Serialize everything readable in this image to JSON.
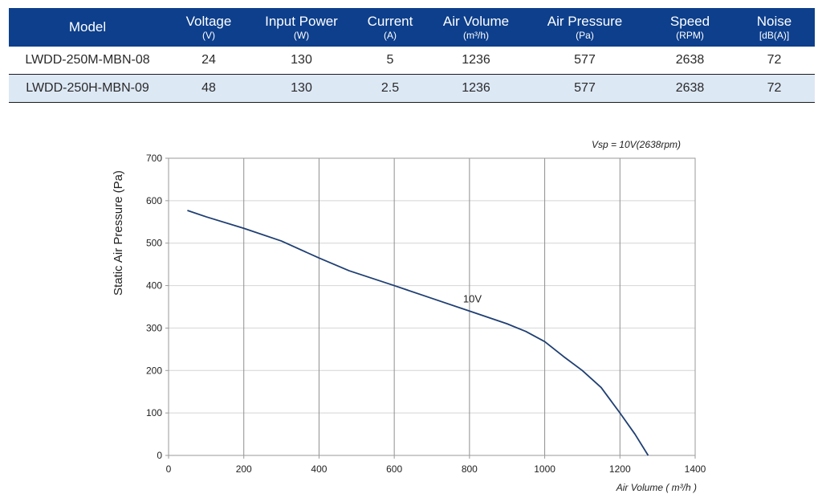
{
  "table": {
    "headers": [
      {
        "name": "Model",
        "unit": ""
      },
      {
        "name": "Voltage",
        "unit": "(V)"
      },
      {
        "name": "Input Power",
        "unit": "(W)"
      },
      {
        "name": "Current",
        "unit": "(A)"
      },
      {
        "name": "Air Volume",
        "unit": "(m³/h)"
      },
      {
        "name": "Air Pressure",
        "unit": "(Pa)"
      },
      {
        "name": "Speed",
        "unit": "(RPM)"
      },
      {
        "name": "Noise",
        "unit": "[dB(A)]"
      }
    ],
    "rows": [
      [
        "LWDD-250M-MBN-08",
        "24",
        "130",
        "5",
        "1236",
        "577",
        "2638",
        "72"
      ],
      [
        "LWDD-250H-MBN-09",
        "48",
        "130",
        "2.5",
        "1236",
        "577",
        "2638",
        "72"
      ]
    ],
    "header_color": "#0d3f8c",
    "alt_row_color": "#dde8f5"
  },
  "chart_data": {
    "type": "line",
    "title": "",
    "annotation": "Vsp = 10V(2638rpm)",
    "xlabel": "Air Volume ( m³/h )",
    "ylabel": "Static Air Pressure  (Pa)",
    "xlim": [
      0,
      1400
    ],
    "ylim": [
      0,
      700
    ],
    "xticks": [
      0,
      200,
      400,
      600,
      800,
      1000,
      1200,
      1400
    ],
    "yticks": [
      0,
      100,
      200,
      300,
      400,
      500,
      600,
      700
    ],
    "grid": true,
    "series": [
      {
        "name": "10V",
        "color": "#1f3f73",
        "x": [
          50,
          100,
          200,
          300,
          400,
          480,
          600,
          700,
          800,
          900,
          950,
          1000,
          1050,
          1100,
          1150,
          1200,
          1240,
          1275
        ],
        "y": [
          577,
          562,
          535,
          505,
          465,
          435,
          400,
          370,
          340,
          310,
          292,
          268,
          233,
          200,
          160,
          100,
          50,
          0
        ]
      }
    ]
  }
}
